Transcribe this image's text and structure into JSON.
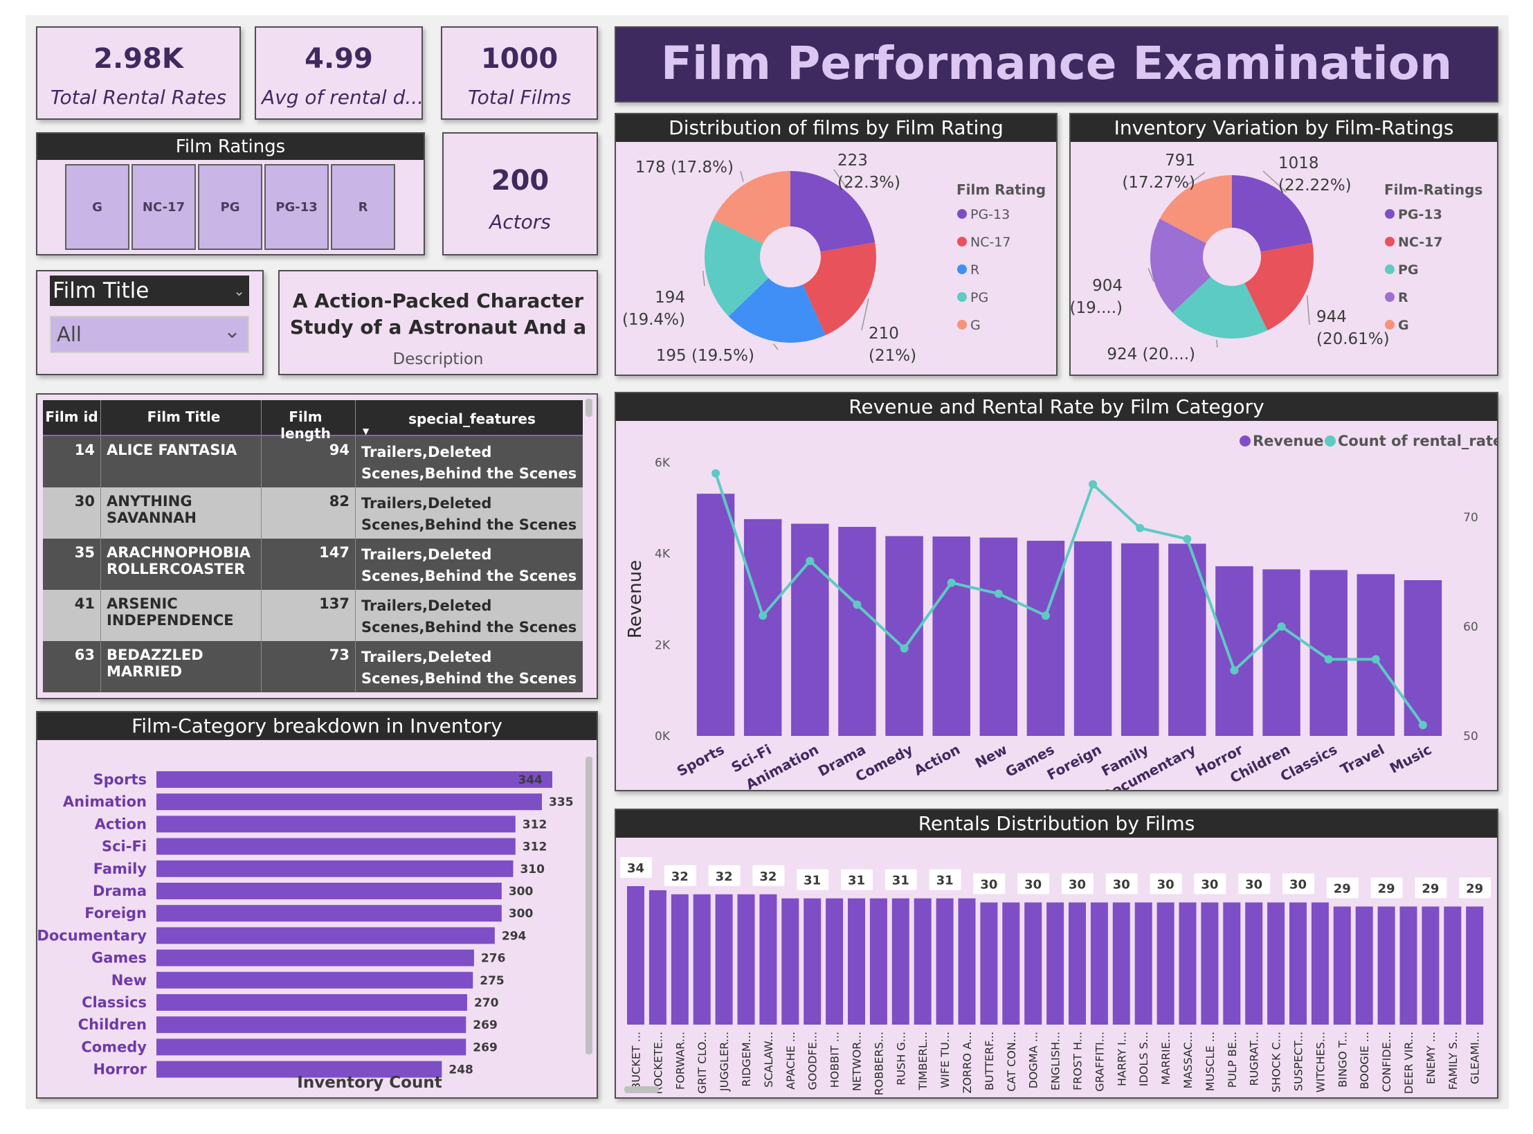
{
  "kpis": [
    {
      "value": "2.98K",
      "label": "Total Rental Rates"
    },
    {
      "value": "4.99",
      "label": "Avg of rental d..."
    },
    {
      "value": "1000",
      "label": "Total Films"
    },
    {
      "value": "200",
      "label": "Actors"
    }
  ],
  "banner_title": "Film Performance Examination",
  "film_ratings_slicer": {
    "title": "Film Ratings",
    "options": [
      "G",
      "NC-17",
      "PG",
      "PG-13",
      "R"
    ]
  },
  "film_title_slicer": {
    "title": "Film Title",
    "selected": "All"
  },
  "description_card": {
    "text": "A Action-Packed Character Study of a Astronaut And a Ex...",
    "label": "Description"
  },
  "table": {
    "columns": [
      "Film id",
      "Film Title",
      "Film length",
      "special_features"
    ],
    "rows": [
      {
        "id": "14",
        "title": "ALICE FANTASIA",
        "length": "94",
        "features": "Trailers,Deleted Scenes,Behind the Scenes"
      },
      {
        "id": "30",
        "title": "ANYTHING SAVANNAH",
        "length": "82",
        "features": "Trailers,Deleted Scenes,Behind the Scenes"
      },
      {
        "id": "35",
        "title": "ARACHNOPHOBIA ROLLERCOASTER",
        "length": "147",
        "features": "Trailers,Deleted Scenes,Behind the Scenes"
      },
      {
        "id": "41",
        "title": "ARSENIC INDEPENDENCE",
        "length": "137",
        "features": "Trailers,Deleted Scenes,Behind the Scenes"
      },
      {
        "id": "63",
        "title": "BEDAZZLED MARRIED",
        "length": "73",
        "features": "Trailers,Deleted Scenes,Behind the Scenes"
      }
    ]
  },
  "colors": {
    "purple": "#7e4ec6",
    "red": "#e8525a",
    "blue": "#3f8ff7",
    "teal": "#5ccbc4",
    "salmon": "#f7937a",
    "lavender": "#9b6fd4",
    "line": "#5ecac4"
  },
  "chart_data": [
    {
      "type": "pie",
      "title": "Distribution of films by Film Rating",
      "legend_title": "Film Rating",
      "legend": [
        "PG-13",
        "NC-17",
        "R",
        "PG",
        "G"
      ],
      "slices": [
        {
          "label": "PG-13",
          "value": 223,
          "text": "223 (22.3%)",
          "color": "#7e4ec6"
        },
        {
          "label": "NC-17",
          "value": 210,
          "text": "210 (21%)",
          "color": "#e8525a"
        },
        {
          "label": "R",
          "value": 195,
          "text": "195 (19.5%)",
          "color": "#3f8ff7"
        },
        {
          "label": "PG",
          "value": 194,
          "text": "194 (19.4%)",
          "color": "#5ccbc4"
        },
        {
          "label": "G",
          "value": 178,
          "text": "178 (17.8%)",
          "color": "#f7937a"
        }
      ]
    },
    {
      "type": "pie",
      "title": "Inventory Variation by Film-Ratings",
      "legend_title": "Film-Ratings",
      "legend": [
        "PG-13",
        "NC-17",
        "PG",
        "R",
        "G"
      ],
      "slices": [
        {
          "label": "PG-13",
          "value": 1018,
          "text": "1018 (22.22%)",
          "color": "#7e4ec6"
        },
        {
          "label": "NC-17",
          "value": 944,
          "text": "944 (20.61%)",
          "color": "#e8525a"
        },
        {
          "label": "PG",
          "value": 924,
          "text": "924 (20....)",
          "color": "#5ccbc4"
        },
        {
          "label": "R",
          "value": 904,
          "text": "904 (19....)",
          "color": "#9b6fd4"
        },
        {
          "label": "G",
          "value": 791,
          "text": "791 (17.27%)",
          "color": "#f7937a"
        }
      ]
    },
    {
      "type": "bar",
      "title": "Revenue and Rental Rate by Film Category",
      "ylabel": "Revenue",
      "categories": [
        "Sports",
        "Sci-Fi",
        "Animation",
        "Drama",
        "Comedy",
        "Action",
        "New",
        "Games",
        "Foreign",
        "Family",
        "Documentary",
        "Horror",
        "Children",
        "Classics",
        "Travel",
        "Music"
      ],
      "series": [
        {
          "name": "Revenue",
          "values": [
            5314,
            4757,
            4656,
            4587,
            4384,
            4376,
            4352,
            4282,
            4270,
            4226,
            4218,
            3723,
            3655,
            3640,
            3550,
            3418
          ]
        },
        {
          "name": "Count of rental_rate",
          "values": [
            74,
            61,
            66,
            62,
            58,
            64,
            63,
            61,
            73,
            69,
            68,
            56,
            60,
            57,
            57,
            51
          ]
        }
      ],
      "ylim": [
        0,
        6000
      ],
      "y_ticks": [
        "0K",
        "2K",
        "4K",
        "6K"
      ],
      "y2lim": [
        50,
        75
      ],
      "y2_ticks": [
        "50",
        "60",
        "70"
      ]
    },
    {
      "type": "bar",
      "orientation": "horizontal",
      "title": "Film-Category breakdown in Inventory",
      "xlabel": "Inventory Count",
      "categories": [
        "Sports",
        "Animation",
        "Action",
        "Sci-Fi",
        "Family",
        "Drama",
        "Foreign",
        "Documentary",
        "Games",
        "New",
        "Classics",
        "Children",
        "Comedy",
        "Horror"
      ],
      "values": [
        344,
        335,
        312,
        312,
        310,
        300,
        300,
        294,
        276,
        275,
        270,
        269,
        269,
        248
      ]
    },
    {
      "type": "bar",
      "title": "Rentals Distribution by Films",
      "categories": [
        "BUCKET ...",
        "ROCKETE...",
        "FORWAR...",
        "GRIT CLO...",
        "JUGGLER...",
        "RIDGEM...",
        "SCALAW...",
        "APACHE ...",
        "GOODFE...",
        "HOBBIT ...",
        "NETWOR...",
        "ROBBERS...",
        "RUSH G...",
        "TIMBERL...",
        "WIFE TU...",
        "ZORRO A...",
        "BUTTERF...",
        "CAT CON...",
        "DOGMA ...",
        "ENGLISH...",
        "FROST H...",
        "GRAFFITI...",
        "HARRY I...",
        "IDOLS S...",
        "MARRIE...",
        "MASSAC...",
        "MUSCLE ...",
        "PULP BE...",
        "RUGRAT...",
        "SHOCK C...",
        "SUSPECT...",
        "WITCHES...",
        "BINGO T...",
        "BOOGIE ...",
        "CONFIDE...",
        "DEER VIR...",
        "ENEMY ...",
        "FAMILY S...",
        "GLEAMI..."
      ],
      "values": [
        34,
        33,
        32,
        32,
        32,
        32,
        32,
        31,
        31,
        31,
        31,
        31,
        31,
        31,
        31,
        31,
        30,
        30,
        30,
        30,
        30,
        30,
        30,
        30,
        30,
        30,
        30,
        30,
        30,
        30,
        30,
        30,
        29,
        29,
        29,
        29,
        29,
        29,
        29
      ],
      "labels": [
        "34",
        "",
        "32",
        "",
        "32",
        "",
        "32",
        "",
        "31",
        "",
        "31",
        "",
        "31",
        "",
        "31",
        "",
        "30",
        "",
        "30",
        "",
        "30",
        "",
        "30",
        "",
        "30",
        "",
        "30",
        "",
        "30",
        "",
        "30",
        "",
        "29",
        "",
        "29",
        "",
        "29",
        "",
        "29"
      ]
    }
  ]
}
